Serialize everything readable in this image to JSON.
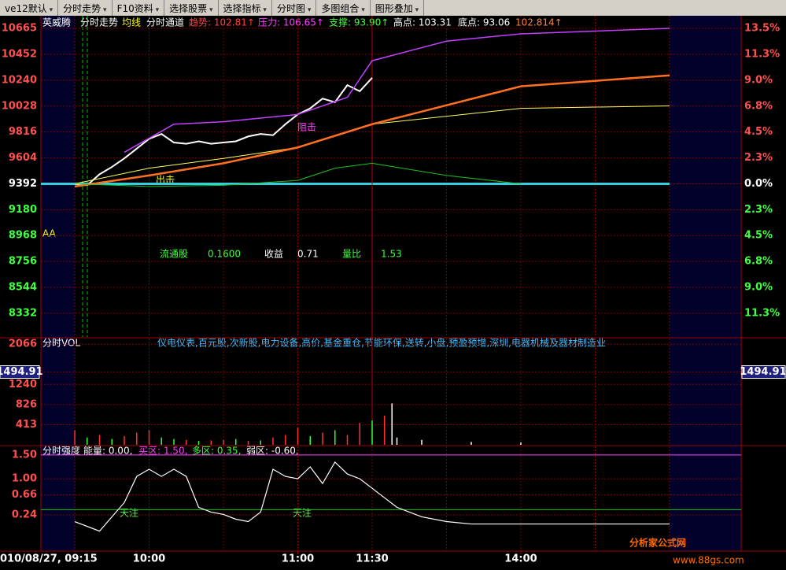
{
  "toolbar": [
    "ve12默认",
    "分时走势",
    "F10资料",
    "选择股票",
    "选择指标",
    "分时图",
    "多图组合",
    "图形叠加"
  ],
  "header": {
    "stock": "英威腾",
    "mode": "分时走势",
    "avg": "均线",
    "channel": "分时通道",
    "trend": "趋势: 102.81↑",
    "pressure": "压力: 106.65↑",
    "support": "支撑: 93.90↑",
    "high": "高点: 103.31",
    "low": "底点: 93.06",
    "extra": "102.814↑"
  },
  "info": {
    "float_label": "流通股",
    "float_value": "0.1600",
    "eps_label": "收益",
    "eps_value": "0.71",
    "ratio_label": "量比",
    "ratio_value": "1.53"
  },
  "time_axis": {
    "date": "010/08/27, 09:15",
    "xlim": [
      0,
      240
    ],
    "xticks": [
      {
        "value": 30,
        "label": "10:00"
      },
      {
        "value": 90,
        "label": "11:00"
      },
      {
        "value": 120,
        "label": "11:30"
      },
      {
        "value": 180,
        "label": "14:00"
      }
    ],
    "xgrid": [
      0,
      30,
      60,
      90,
      120,
      150,
      180,
      210,
      240
    ]
  },
  "price_pane": {
    "marker": "AA",
    "resist_note": "阻击",
    "out_note": "出击",
    "ylim": [
      8138,
      10768
    ],
    "prev_close": 9392,
    "yticks": [
      10665,
      10452,
      10240,
      10028,
      9816,
      9604,
      9392,
      9180,
      8968,
      8756,
      8544,
      8332
    ],
    "right_labels": [
      "13.5%",
      "11.3%",
      "9.0%",
      "6.8%",
      "4.5%",
      "2.3%",
      "0.0%",
      "2.3%",
      "4.5%",
      "6.8%",
      "9.0%",
      "11.3%"
    ],
    "series": [
      {
        "color": "#ffffff",
        "width": 2,
        "x": [
          0,
          5,
          10,
          15,
          20,
          25,
          30,
          35,
          40,
          45,
          50,
          55,
          60,
          65,
          70,
          75,
          80,
          85,
          90,
          95,
          100,
          105,
          110,
          115,
          120
        ],
        "values": [
          9392,
          9380,
          9470,
          9530,
          9600,
          9680,
          9760,
          9800,
          9730,
          9720,
          9740,
          9720,
          9730,
          9740,
          9780,
          9800,
          9790,
          9880,
          9960,
          10010,
          10090,
          10060,
          10200,
          10150,
          10260
        ]
      },
      {
        "color": "#ffff60",
        "width": 1,
        "x": [
          0,
          30,
          60,
          90,
          120,
          180,
          240
        ],
        "values": [
          9392,
          9520,
          9600,
          9690,
          9880,
          10010,
          10030
        ]
      },
      {
        "color": "#ff7020",
        "width": 2.5,
        "x": [
          0,
          30,
          60,
          90,
          120,
          180,
          240
        ],
        "values": [
          9370,
          9460,
          9560,
          9690,
          9880,
          10190,
          10280
        ]
      },
      {
        "color": "#c040ff",
        "width": 1.5,
        "x": [
          20,
          40,
          60,
          90,
          110,
          120,
          150,
          180,
          240
        ],
        "values": [
          9650,
          9880,
          9900,
          9960,
          10100,
          10400,
          10560,
          10620,
          10665
        ]
      },
      {
        "color": "#20c020",
        "width": 1,
        "x": [
          0,
          30,
          60,
          90,
          105,
          120,
          150,
          180
        ],
        "values": [
          9392,
          9370,
          9380,
          9420,
          9520,
          9560,
          9460,
          9392
        ]
      }
    ]
  },
  "volume_pane": {
    "title": "分时VOL",
    "sectors": "仪电仪表,百元股,次新股,电力设备,高价,基金重仓,节能环保,送转,小盘,预盈预增,深圳,电器机械及器材制造业",
    "ylim": [
      0,
      2150
    ],
    "yticks": [
      2066,
      {
        "value": 1494.91,
        "label": "1494.91"
      },
      1240,
      826,
      413
    ],
    "x": [
      0,
      5,
      10,
      15,
      20,
      25,
      30,
      35,
      40,
      45,
      50,
      55,
      60,
      65,
      70,
      75,
      80,
      85,
      90,
      95,
      100,
      105,
      110,
      115,
      120,
      125,
      128,
      130,
      140,
      160,
      180
    ],
    "values": [
      300,
      150,
      200,
      120,
      180,
      250,
      300,
      150,
      120,
      100,
      80,
      90,
      100,
      120,
      80,
      90,
      150,
      200,
      350,
      180,
      250,
      300,
      200,
      450,
      500,
      600,
      850,
      150,
      100,
      60,
      50
    ],
    "colors": [
      "#ff3030",
      "#30ff30",
      "#ff3030",
      "#30ff30",
      "#ff3030",
      "#ff3030",
      "#ff3030",
      "#30ff30",
      "#30ff30",
      "#ff3030",
      "#30ff30",
      "#ff3030",
      "#ff3030",
      "#30ff30",
      "#ff3030",
      "#30ff30",
      "#ff3030",
      "#ff3030",
      "#ff3030",
      "#30ff30",
      "#ff3030",
      "#30ff30",
      "#ff3030",
      "#ff3030",
      "#30ff30",
      "#ff3030",
      "#ffffff",
      "#ffffff",
      "#ffffff",
      "#ffffff",
      "#ffffff"
    ]
  },
  "strength_pane": {
    "title": "分时强度",
    "energy": "能量: 0.00,",
    "buy": "买区: 1.50,",
    "bull": "多区: 0.35,",
    "weak": "弱区: -0.60,",
    "notes": [
      "天注",
      "天注"
    ],
    "ylim": [
      -0.52,
      1.68
    ],
    "yticks": [
      {
        "value": 1.5,
        "label": "1.50"
      },
      {
        "value": 1,
        "label": "1.00"
      },
      0.66,
      0.24
    ],
    "levels": [
      {
        "value": 1.5,
        "color": "#ff40ff"
      },
      {
        "value": 0.35,
        "color": "#20c020"
      }
    ],
    "x": [
      0,
      10,
      20,
      25,
      30,
      35,
      40,
      45,
      50,
      55,
      60,
      65,
      70,
      75,
      80,
      85,
      90,
      95,
      100,
      105,
      110,
      115,
      120,
      125,
      130,
      140,
      150,
      160,
      180,
      210,
      240
    ],
    "values": [
      0.1,
      -0.1,
      0.5,
      1.05,
      1.2,
      1.05,
      1.2,
      1.05,
      0.4,
      0.3,
      0.25,
      0.15,
      0.1,
      0.3,
      1.2,
      1.05,
      1.0,
      1.25,
      0.9,
      1.35,
      1.1,
      1.0,
      0.8,
      0.6,
      0.4,
      0.2,
      0.1,
      0.05,
      0.05,
      0.05,
      0.05
    ]
  },
  "watermark": {
    "name": "分析家公式网",
    "url": "www.88gs.com"
  }
}
